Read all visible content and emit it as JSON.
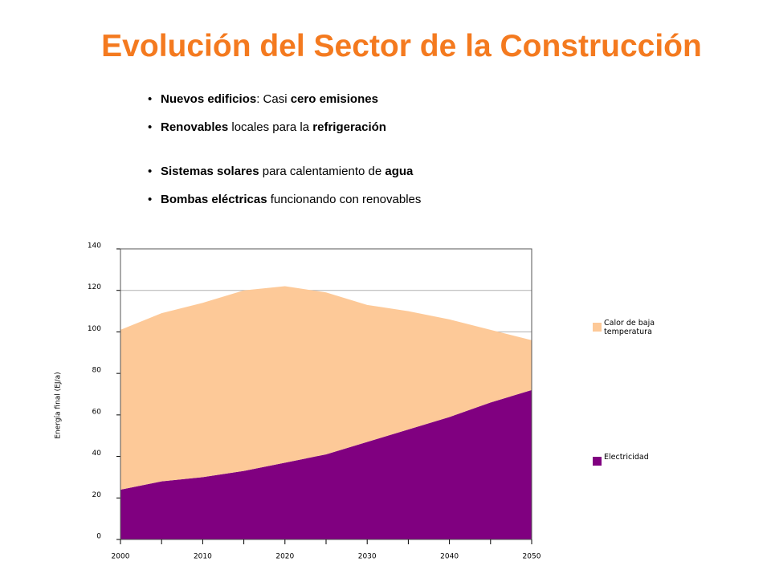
{
  "title": "Evolución del Sector de la Construcción",
  "bullets": [
    [
      {
        "text": "Nuevos edificios",
        "bold": true
      },
      {
        "text": ": Casi ",
        "bold": false
      },
      {
        "text": "cero emisiones",
        "bold": true
      }
    ],
    [
      {
        "text": "Renovables",
        "bold": true
      },
      {
        "text": " locales para la ",
        "bold": false
      },
      {
        "text": "refrigeración",
        "bold": true
      }
    ],
    [
      {
        "text": "Sistemas solares",
        "bold": true
      },
      {
        "text": " para calentamiento de ",
        "bold": false
      },
      {
        "text": "agua",
        "bold": true
      }
    ],
    [
      {
        "text": "Bombas eléctricas",
        "bold": true
      },
      {
        "text": " funcionando con renovables",
        "bold": false
      }
    ]
  ],
  "chart_data": {
    "type": "stacked-area",
    "y_label": "Energía final  (EJ/a)",
    "x": [
      2000,
      2005,
      2010,
      2015,
      2020,
      2025,
      2030,
      2035,
      2040,
      2045,
      2050
    ],
    "series": [
      {
        "name": "Electricidad",
        "color": "#800080",
        "values": [
          24,
          28,
          30,
          33,
          37,
          41,
          47,
          53,
          59,
          66,
          72
        ]
      },
      {
        "name": "Calor de baja temperatura",
        "color": "#fdc998",
        "values": [
          77,
          81,
          84,
          87,
          85,
          78,
          66,
          57,
          47,
          35,
          24
        ]
      }
    ],
    "xlim": [
      2000,
      2050
    ],
    "xticks": [
      2000,
      2010,
      2020,
      2030,
      2040,
      2050
    ],
    "ylim": [
      0,
      140
    ],
    "yticks": [
      0,
      20,
      40,
      60,
      80,
      100,
      120,
      140
    ],
    "grid": true,
    "legend": "right"
  }
}
